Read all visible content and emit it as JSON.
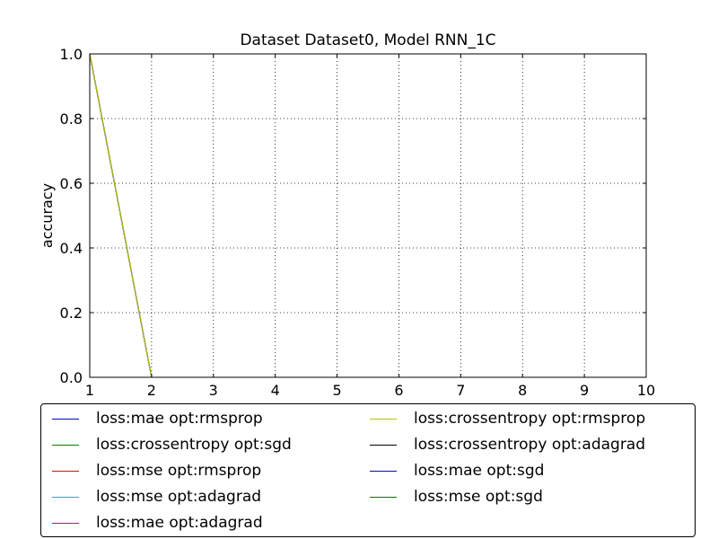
{
  "chart_data": {
    "type": "line",
    "title": "Dataset Dataset0, Model RNN_1C",
    "xlabel": "",
    "ylabel": "accuracy",
    "xlim": [
      1,
      10
    ],
    "ylim": [
      0.0,
      1.0
    ],
    "x_ticks": [
      "1",
      "2",
      "3",
      "4",
      "5",
      "6",
      "7",
      "8",
      "9",
      "10"
    ],
    "y_ticks": [
      "0.0",
      "0.2",
      "0.4",
      "0.6",
      "0.8",
      "1.0"
    ],
    "grid": true,
    "legend_position": "bottom",
    "x": [
      1,
      2,
      3,
      4,
      5,
      6,
      7,
      8,
      9,
      10
    ],
    "series": [
      {
        "name": "loss:mae opt:rmsprop",
        "color": "#0000ff",
        "values": [
          1.0,
          0,
          0,
          0,
          0,
          0,
          0,
          0,
          0,
          0
        ]
      },
      {
        "name": "loss:crossentropy opt:sgd",
        "color": "#008000",
        "values": [
          1.0,
          0,
          0,
          0,
          0,
          0,
          0,
          0,
          0,
          0
        ]
      },
      {
        "name": "loss:mse opt:rmsprop",
        "color": "#ff0000",
        "values": [
          1.0,
          0,
          0,
          0,
          0,
          0,
          0,
          0,
          0,
          0
        ]
      },
      {
        "name": "loss:mse opt:adagrad",
        "color": "#00bfbf",
        "values": [
          1.0,
          0,
          0,
          0,
          0,
          0,
          0,
          0,
          0,
          0
        ]
      },
      {
        "name": "loss:mae opt:adagrad",
        "color": "#bf00bf",
        "values": [
          1.0,
          0,
          0,
          0,
          0,
          0,
          0,
          0,
          0,
          0
        ]
      },
      {
        "name": "loss:crossentropy opt:rmsprop",
        "color": "#bfbf00",
        "values": [
          1.0,
          0,
          0,
          0,
          0,
          0,
          0,
          0,
          0,
          0
        ]
      },
      {
        "name": "loss:crossentropy opt:adagrad",
        "color": "#000000",
        "values": [
          1.0,
          0,
          0,
          0,
          0,
          0,
          0,
          0,
          0,
          0
        ]
      },
      {
        "name": "loss:mae opt:sgd",
        "color": "#0000ff",
        "values": [
          1.0,
          0,
          0,
          0,
          0,
          0,
          0,
          0,
          0,
          0
        ]
      },
      {
        "name": "loss:mse opt:sgd",
        "color": "#008000",
        "values": [
          1.0,
          0,
          0,
          0,
          0,
          0,
          0,
          0,
          0,
          0
        ]
      }
    ]
  }
}
